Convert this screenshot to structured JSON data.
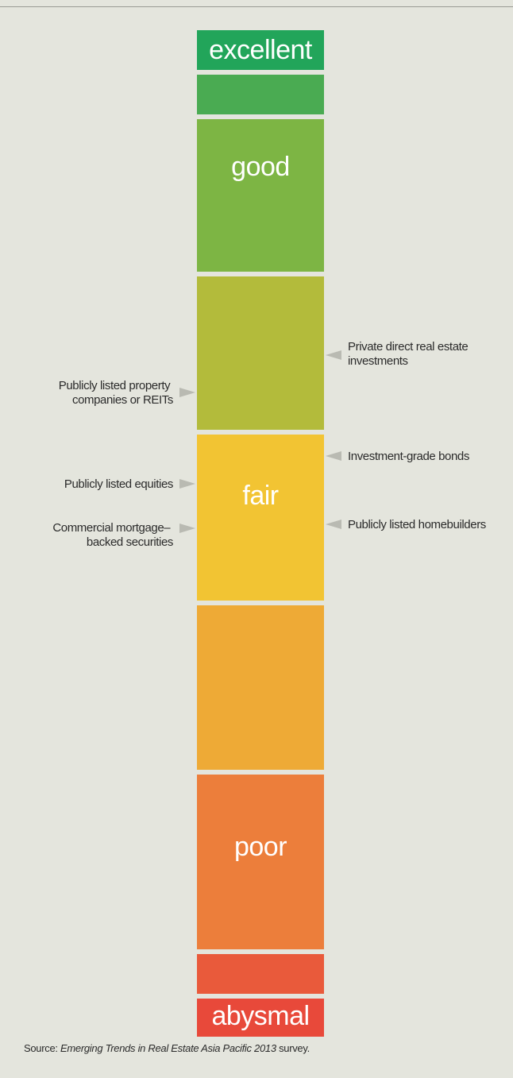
{
  "scale": {
    "levels": [
      "excellent",
      "good",
      "fair",
      "poor",
      "abysmal"
    ]
  },
  "left_items": [
    {
      "lines": [
        "Publicly listed property",
        "companies or REITs"
      ]
    },
    {
      "lines": [
        "Publicly listed equities"
      ]
    },
    {
      "lines": [
        "Commercial mortgage–",
        "backed securities"
      ]
    }
  ],
  "right_items": [
    {
      "lines": [
        "Private direct real estate",
        "investments"
      ]
    },
    {
      "lines": [
        "Investment-grade bonds"
      ]
    },
    {
      "lines": [
        "Publicly listed homebuilders"
      ]
    }
  ],
  "source": {
    "prefix": "Source: ",
    "title": "Emerging Trends in Real Estate Asia Pacific 2013",
    "suffix": " survey."
  }
}
